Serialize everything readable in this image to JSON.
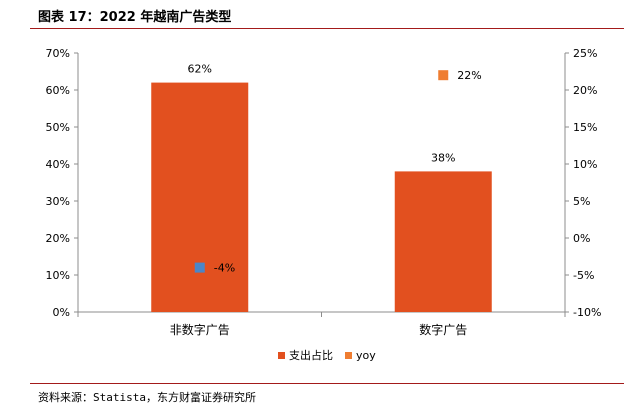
{
  "title": "图表 17：2022 年越南广告类型",
  "source": "资料来源：Statista，东方财富证券研究所",
  "colors": {
    "bar": "#e2501f",
    "yoy_neg": "#4a86c8",
    "yoy_pos": "#ef7d31",
    "axis": "#8c8c8c",
    "rule": "#a31a1a"
  },
  "chart_data": {
    "type": "bar",
    "categories": [
      "非数字广告",
      "数字广告"
    ],
    "series": [
      {
        "name": "支出占比",
        "axis": "left",
        "kind": "bar",
        "values": [
          62,
          38
        ],
        "labels": [
          "62%",
          "38%"
        ]
      },
      {
        "name": "yoy",
        "axis": "right",
        "kind": "marker",
        "values": [
          -4,
          22
        ],
        "labels": [
          "-4%",
          "22%"
        ]
      }
    ],
    "left_axis": {
      "min": 0,
      "max": 70,
      "step": 10,
      "ticks": [
        "0%",
        "10%",
        "20%",
        "30%",
        "40%",
        "50%",
        "60%",
        "70%"
      ]
    },
    "right_axis": {
      "min": -10,
      "max": 25,
      "step": 5,
      "ticks": [
        "-10%",
        "-5%",
        "0%",
        "5%",
        "10%",
        "15%",
        "20%",
        "25%"
      ]
    },
    "legend": {
      "position": "bottom",
      "entries": [
        "支出占比",
        "yoy"
      ]
    },
    "grid": false
  }
}
